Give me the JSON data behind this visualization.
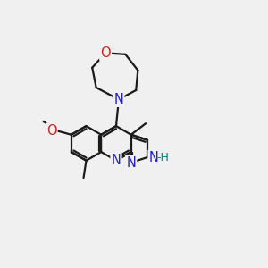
{
  "bg_color": "#f0f0f0",
  "bond_color": "#1a1a1a",
  "N_color": "#2020cc",
  "O_color": "#cc2020",
  "teal_color": "#008080",
  "line_width": 1.6,
  "font_size_atom": 10.5,
  "xlim": [
    0,
    10
  ],
  "ylim": [
    0,
    10
  ]
}
